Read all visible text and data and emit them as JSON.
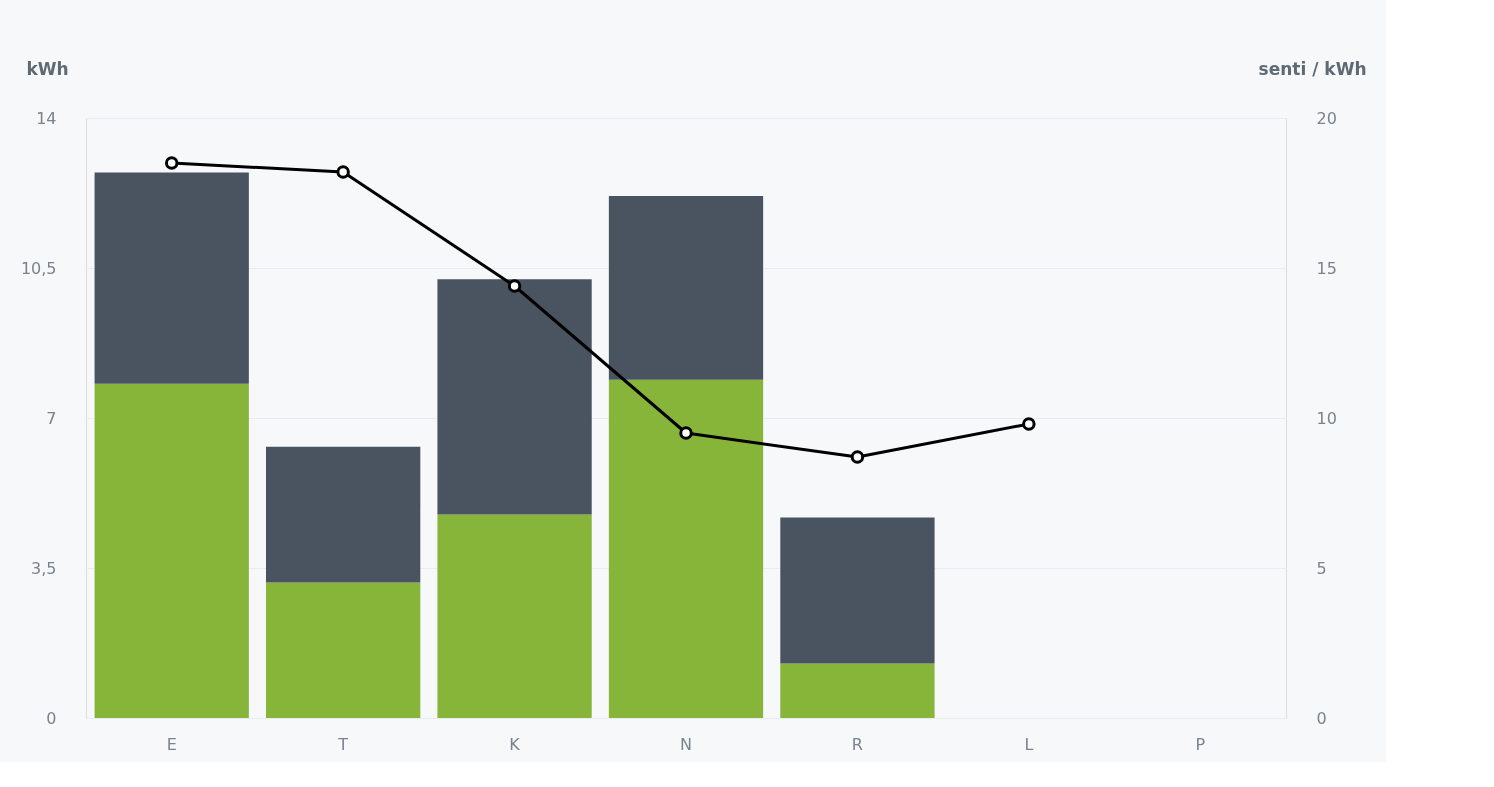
{
  "chart_data": {
    "type": "bar",
    "stacked": true,
    "categories": [
      "E",
      "T",
      "K",
      "N",
      "R",
      "L",
      "P"
    ],
    "ylabel": "kWh",
    "y2label": "senti / kWh",
    "series": [
      {
        "color": "#86b53a",
        "values": [
          7.8,
          3.16,
          4.75,
          7.89,
          1.27,
          null,
          null
        ]
      },
      {
        "color": "#4a5461",
        "values": [
          4.93,
          3.17,
          5.49,
          4.29,
          3.41,
          null,
          null
        ]
      },
      {
        "type": "line",
        "axis": "y2",
        "color": "#000000",
        "values": [
          18.5,
          18.2,
          14.4,
          9.5,
          8.7,
          9.8,
          null
        ]
      }
    ],
    "ylim": [
      0,
      14
    ],
    "yticks": [
      0,
      {
        "value": 3.5,
        "label": "3,5"
      },
      7,
      {
        "value": 10.5,
        "label": "10,5"
      },
      14
    ],
    "y2lim": [
      0,
      20
    ],
    "y2ticks": [
      0,
      5,
      10,
      15,
      20
    ],
    "grid": "y",
    "legend": false,
    "marker": "circle",
    "line_style": "solid"
  }
}
